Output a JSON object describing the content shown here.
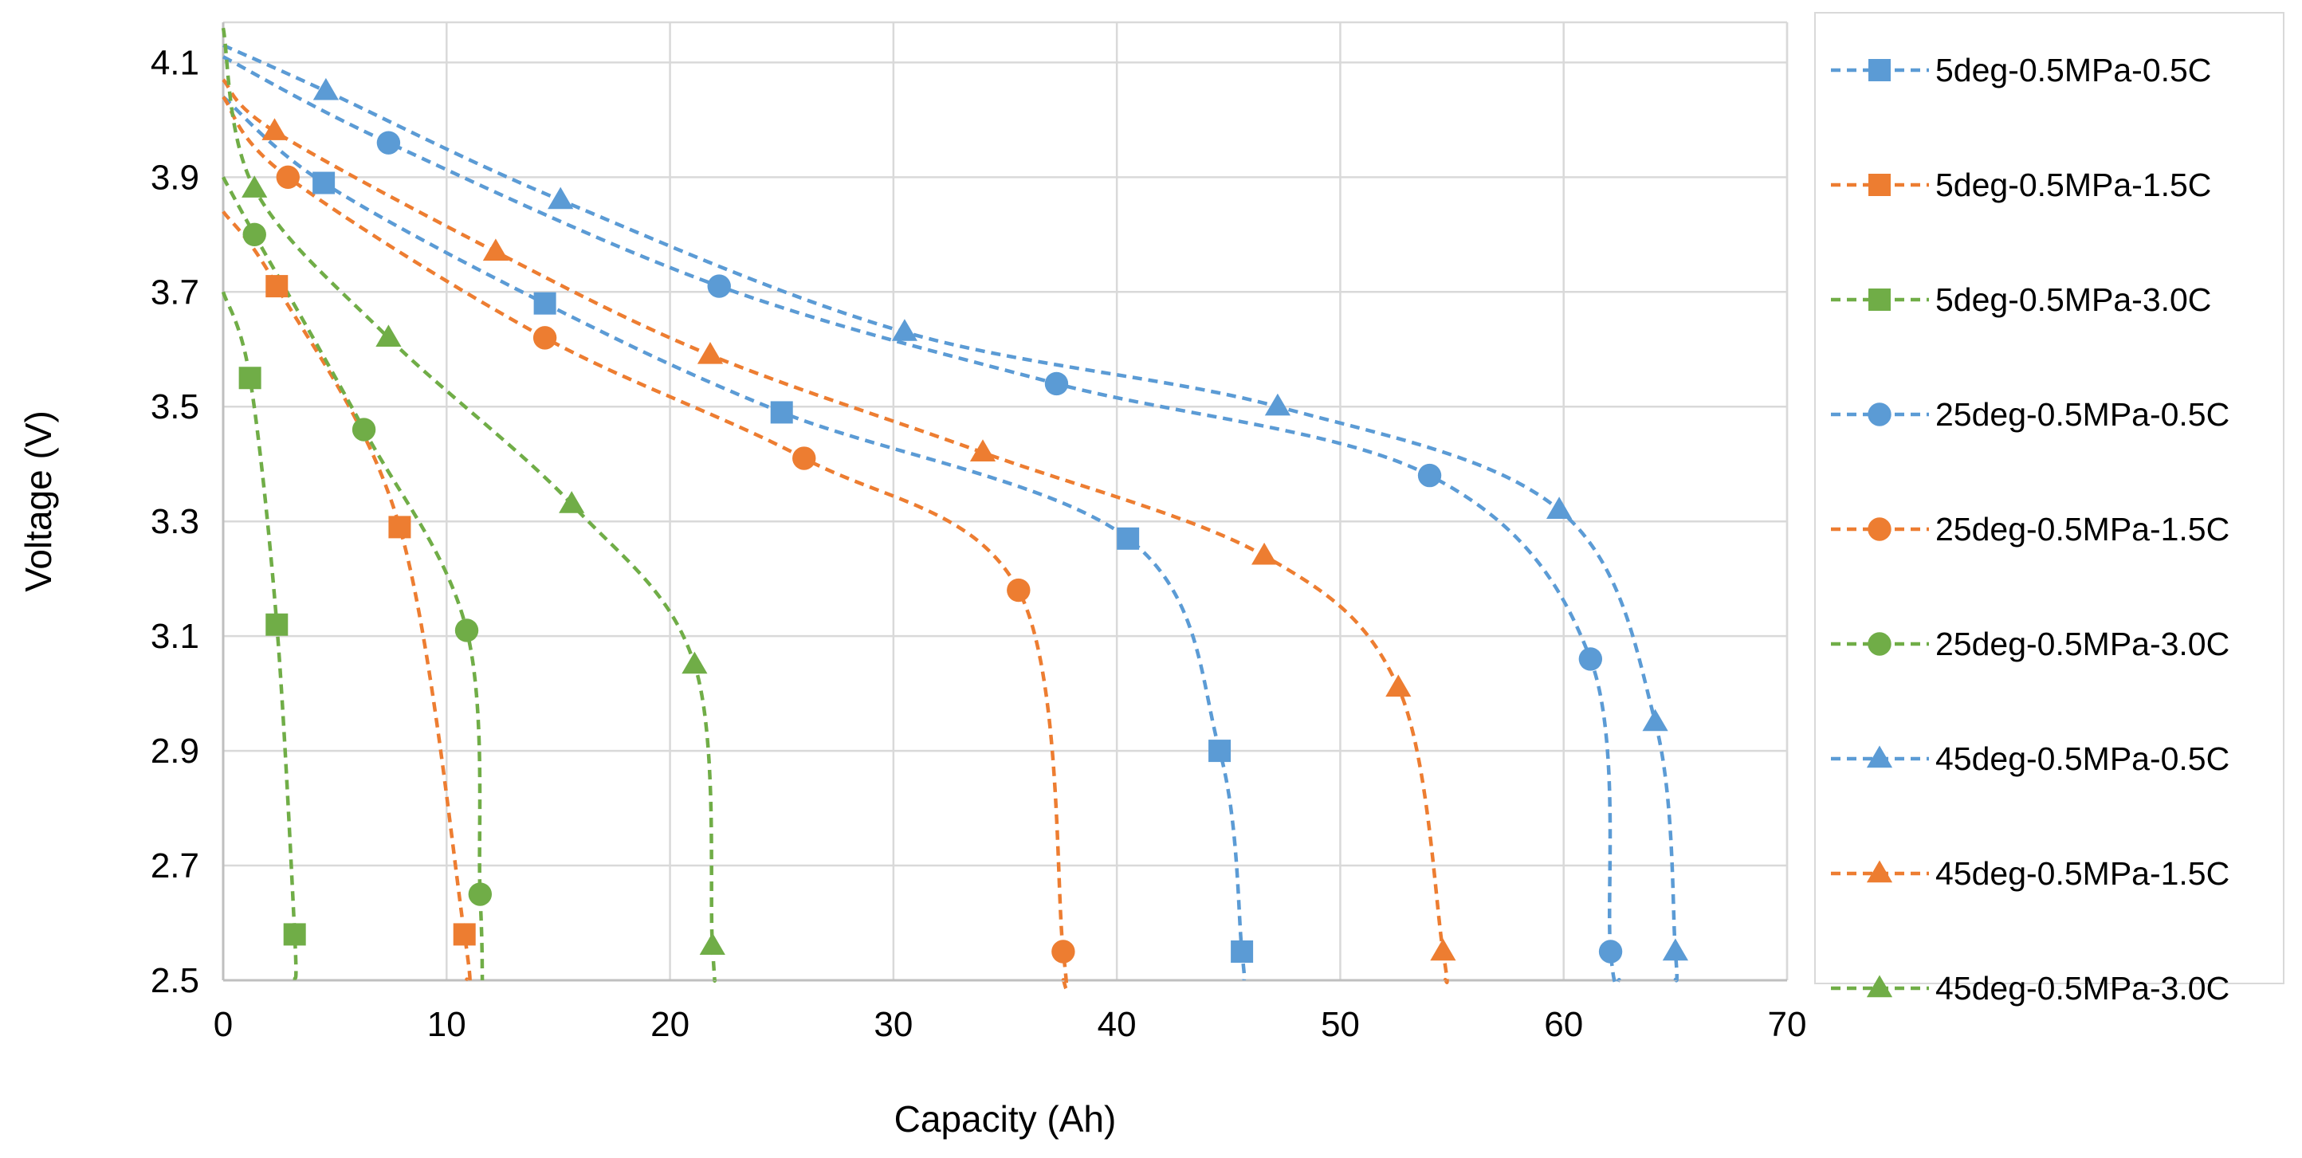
{
  "chart_data": {
    "type": "line",
    "title": "",
    "xlabel": "Capacity (Ah)",
    "ylabel": "Voltage (V)",
    "xlim": [
      0,
      70
    ],
    "ylim": [
      2.5,
      4.17
    ],
    "xticks": [
      "0",
      "10",
      "20",
      "30",
      "40",
      "50",
      "60",
      "70"
    ],
    "yticks": [
      "2.5",
      "2.7",
      "2.9",
      "3.1",
      "3.3",
      "3.5",
      "3.7",
      "3.9",
      "4.1"
    ],
    "grid": true,
    "legend_position": "right",
    "line_style": "dashed",
    "colors": {
      "blue": "#5b9bd5",
      "orange": "#ed7d31",
      "green": "#70ad47",
      "grid": "#d9d9d9"
    },
    "series": [
      {
        "name": "5deg-0.5MPa-0.5C",
        "color": "#5b9bd5",
        "marker": "square",
        "points": [
          [
            0,
            4.04
          ],
          [
            4.5,
            3.89
          ],
          [
            14.4,
            3.68
          ],
          [
            25,
            3.49
          ],
          [
            40.5,
            3.27
          ],
          [
            44.6,
            2.9
          ],
          [
            45.6,
            2.55
          ],
          [
            45.7,
            2.5
          ]
        ]
      },
      {
        "name": "5deg-0.5MPa-1.5C",
        "color": "#ed7d31",
        "marker": "square",
        "points": [
          [
            0,
            3.84
          ],
          [
            2.4,
            3.71
          ],
          [
            7.9,
            3.29
          ],
          [
            10.8,
            2.58
          ],
          [
            10.9,
            2.5
          ]
        ]
      },
      {
        "name": "5deg-0.5MPa-3.0C",
        "color": "#70ad47",
        "marker": "square",
        "points": [
          [
            0,
            3.7
          ],
          [
            1.2,
            3.55
          ],
          [
            2.4,
            3.12
          ],
          [
            3.2,
            2.58
          ],
          [
            3.2,
            2.5
          ]
        ]
      },
      {
        "name": "25deg-0.5MPa-0.5C",
        "color": "#5b9bd5",
        "marker": "circle",
        "points": [
          [
            0,
            4.11
          ],
          [
            7.4,
            3.96
          ],
          [
            22.2,
            3.71
          ],
          [
            37.3,
            3.54
          ],
          [
            54,
            3.38
          ],
          [
            61.2,
            3.06
          ],
          [
            62.1,
            2.55
          ],
          [
            62.5,
            2.5
          ]
        ]
      },
      {
        "name": "25deg-0.5MPa-1.5C",
        "color": "#ed7d31",
        "marker": "circle",
        "points": [
          [
            0,
            4.04
          ],
          [
            2.9,
            3.9
          ],
          [
            14.4,
            3.62
          ],
          [
            26,
            3.41
          ],
          [
            35.6,
            3.18
          ],
          [
            37.6,
            2.55
          ],
          [
            37.6,
            2.5
          ]
        ]
      },
      {
        "name": "25deg-0.5MPa-3.0C",
        "color": "#70ad47",
        "marker": "circle",
        "points": [
          [
            0,
            3.9
          ],
          [
            1.4,
            3.8
          ],
          [
            6.3,
            3.46
          ],
          [
            10.9,
            3.11
          ],
          [
            11.5,
            2.65
          ],
          [
            11.6,
            2.5
          ]
        ]
      },
      {
        "name": "45deg-0.5MPa-0.5C",
        "color": "#5b9bd5",
        "marker": "triangle",
        "points": [
          [
            0,
            4.13
          ],
          [
            4.6,
            4.05
          ],
          [
            15.1,
            3.86
          ],
          [
            30.5,
            3.63
          ],
          [
            47.2,
            3.5
          ],
          [
            59.8,
            3.32
          ],
          [
            64.1,
            2.95
          ],
          [
            65,
            2.55
          ],
          [
            65,
            2.5
          ]
        ]
      },
      {
        "name": "45deg-0.5MPa-1.5C",
        "color": "#ed7d31",
        "marker": "triangle",
        "points": [
          [
            0,
            4.07
          ],
          [
            2.3,
            3.98
          ],
          [
            12.2,
            3.77
          ],
          [
            21.8,
            3.59
          ],
          [
            34,
            3.42
          ],
          [
            46.6,
            3.24
          ],
          [
            52.6,
            3.01
          ],
          [
            54.6,
            2.55
          ],
          [
            54.7,
            2.5
          ]
        ]
      },
      {
        "name": "45deg-0.5MPa-3.0C",
        "color": "#70ad47",
        "marker": "triangle",
        "points": [
          [
            0,
            4.16
          ],
          [
            1.4,
            3.88
          ],
          [
            7.4,
            3.62
          ],
          [
            15.6,
            3.33
          ],
          [
            21.1,
            3.05
          ],
          [
            21.9,
            2.56
          ],
          [
            22,
            2.5
          ]
        ]
      }
    ]
  }
}
